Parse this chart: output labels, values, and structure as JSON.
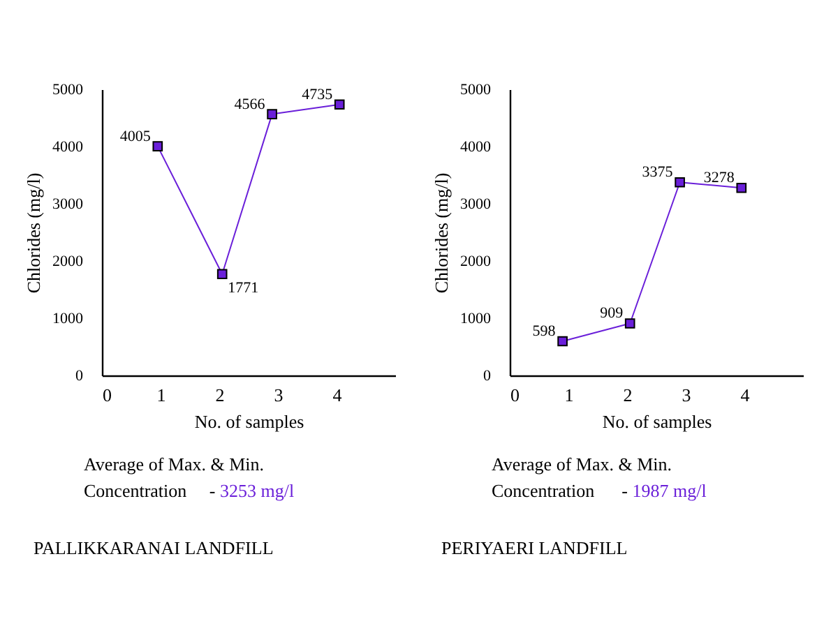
{
  "chart_data": [
    {
      "type": "line",
      "title": "PALLIKKARANAI  LANDFILL",
      "xlabel": "No. of  samples",
      "ylabel": "Chlorides  (mg/l)",
      "x": [
        0.95,
        2.05,
        2.9,
        4.05
      ],
      "series": [
        {
          "color": "#6a1fd9",
          "values": [
            4005,
            1771,
            4566,
            4735
          ]
        }
      ],
      "xlim": [
        0,
        5
      ],
      "xticks": [
        0,
        1,
        2,
        3,
        4
      ],
      "ylim": [
        0,
        5000
      ],
      "yticks": [
        0,
        1000,
        2000,
        3000,
        4000,
        5000
      ],
      "marker": "square",
      "data_labels": true,
      "grid": false,
      "annotations": [
        "Average of Max. & Min.",
        "Concentration     -",
        "3253 mg/l"
      ]
    },
    {
      "type": "line",
      "title": "PERIYAERI  LANDFILL",
      "xlabel": "No. of  samples",
      "ylabel": "Chlorides (mg/l)",
      "x": [
        0.9,
        2.05,
        2.9,
        3.95
      ],
      "series": [
        {
          "color": "#6a1fd9",
          "values": [
            598,
            909,
            3375,
            3278
          ]
        }
      ],
      "xlim": [
        0,
        5
      ],
      "xticks": [
        0,
        1,
        2,
        3,
        4
      ],
      "ylim": [
        0,
        5000
      ],
      "yticks": [
        0,
        1000,
        2000,
        3000,
        4000,
        5000
      ],
      "marker": "square",
      "data_labels": true,
      "grid": false,
      "annotations": [
        "Average of Max. & Min.",
        "Concentration      -",
        "1987 mg/l"
      ]
    }
  ]
}
